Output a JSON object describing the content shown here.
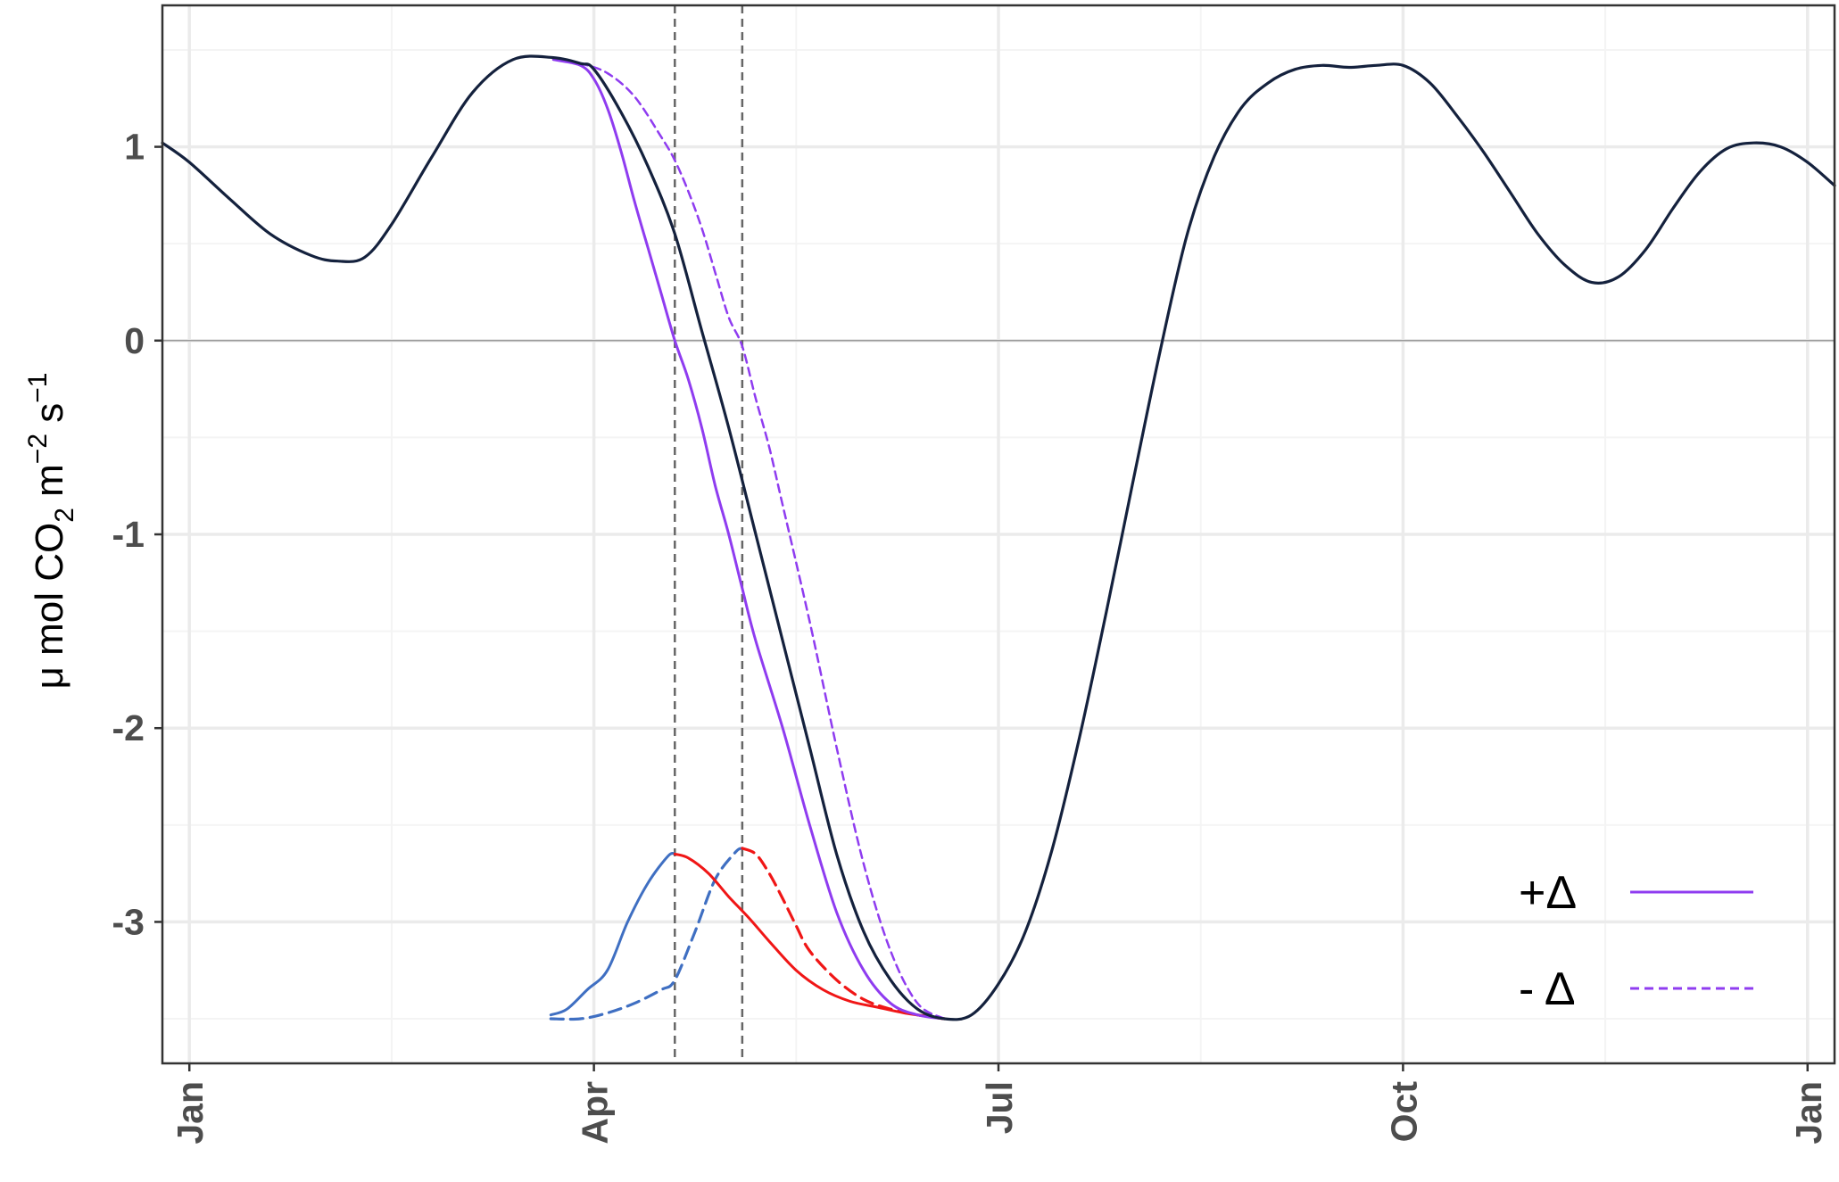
{
  "colors": {
    "main": "#14213d",
    "purple": "#8f3cf0",
    "blue": "#3f6fc2",
    "red": "#f01616",
    "vline": "#666666",
    "grid_major": "#ebebeb",
    "grid_minor": "#f4f4f4",
    "zero_line": "#9a9a9a",
    "panel_border": "#333333"
  },
  "ylabel": {
    "prefix": "μ mol CO",
    "sub": "2",
    "mid": " m",
    "sup1": "−2",
    "mid2": " s",
    "sup2": "−1"
  },
  "legend": {
    "position": "bottom-right",
    "items": [
      {
        "label": "+Δ",
        "style": "solid"
      },
      {
        "label": "- Δ",
        "style": "dashed"
      }
    ]
  },
  "chart_data": {
    "type": "line",
    "x_unit": "month",
    "xlim": [
      -0.2,
      12.2
    ],
    "ylim": [
      -3.73,
      1.73
    ],
    "grid": true,
    "x_ticks": [
      {
        "x": 0,
        "label": "Jan"
      },
      {
        "x": 3,
        "label": "Apr"
      },
      {
        "x": 6,
        "label": "Jul"
      },
      {
        "x": 9,
        "label": "Oct"
      },
      {
        "x": 12,
        "label": "Jan"
      }
    ],
    "y_ticks": [
      {
        "y": 1,
        "label": "1"
      },
      {
        "y": 0,
        "label": "0"
      },
      {
        "y": -1,
        "label": "-1"
      },
      {
        "y": -2,
        "label": "-2"
      },
      {
        "y": -3,
        "label": "-3"
      }
    ],
    "hline": 0,
    "vlines": [
      3.6,
      4.1
    ],
    "series": [
      {
        "key": "main",
        "style": "solid",
        "x": [
          -0.2,
          0.0,
          0.3,
          0.6,
          0.9,
          1.1,
          1.3,
          1.5,
          1.8,
          2.1,
          2.4,
          2.7,
          2.9,
          3.0,
          3.2,
          3.4,
          3.6,
          3.8,
          4.0,
          4.2,
          4.4,
          4.6,
          4.8,
          5.0,
          5.2,
          5.4,
          5.6,
          5.8,
          6.0,
          6.2,
          6.4,
          6.6,
          6.8,
          7.0,
          7.2,
          7.4,
          7.6,
          7.8,
          8.0,
          8.2,
          8.4,
          8.6,
          8.8,
          9.0,
          9.2,
          9.4,
          9.6,
          9.8,
          10.0,
          10.2,
          10.4,
          10.6,
          10.8,
          11.0,
          11.2,
          11.4,
          11.6,
          11.8,
          12.0,
          12.2
        ],
        "y": [
          1.02,
          0.92,
          0.73,
          0.55,
          0.44,
          0.41,
          0.43,
          0.6,
          0.95,
          1.28,
          1.45,
          1.46,
          1.43,
          1.4,
          1.18,
          0.9,
          0.55,
          0.05,
          -0.45,
          -1.0,
          -1.55,
          -2.1,
          -2.65,
          -3.05,
          -3.3,
          -3.45,
          -3.5,
          -3.48,
          -3.32,
          -3.05,
          -2.62,
          -2.05,
          -1.4,
          -0.72,
          -0.05,
          0.55,
          0.95,
          1.2,
          1.33,
          1.4,
          1.42,
          1.41,
          1.42,
          1.42,
          1.33,
          1.16,
          0.97,
          0.76,
          0.55,
          0.39,
          0.3,
          0.33,
          0.47,
          0.68,
          0.87,
          0.99,
          1.02,
          1.0,
          0.92,
          0.8
        ]
      },
      {
        "key": "purple",
        "style": "solid",
        "x": [
          2.7,
          2.9,
          3.0,
          3.1,
          3.2,
          3.3,
          3.4,
          3.5,
          3.6,
          3.7,
          3.8,
          3.9,
          4.0,
          4.1,
          4.2,
          4.4,
          4.6,
          4.8,
          5.0,
          5.2,
          5.4,
          5.6
        ],
        "y": [
          1.45,
          1.42,
          1.35,
          1.2,
          0.98,
          0.72,
          0.48,
          0.24,
          0.0,
          -0.2,
          -0.45,
          -0.75,
          -1.0,
          -1.28,
          -1.55,
          -2.0,
          -2.5,
          -2.95,
          -3.25,
          -3.42,
          -3.48,
          -3.5
        ]
      },
      {
        "key": "purple",
        "style": "dashed",
        "x": [
          2.7,
          2.9,
          3.1,
          3.3,
          3.5,
          3.6,
          3.7,
          3.8,
          3.9,
          4.0,
          4.1,
          4.2,
          4.3,
          4.4,
          4.6,
          4.8,
          5.0,
          5.2,
          5.4,
          5.6
        ],
        "y": [
          1.45,
          1.43,
          1.38,
          1.26,
          1.05,
          0.93,
          0.77,
          0.58,
          0.35,
          0.12,
          -0.03,
          -0.3,
          -0.55,
          -0.85,
          -1.45,
          -2.1,
          -2.7,
          -3.15,
          -3.42,
          -3.5
        ]
      },
      {
        "key": "blue",
        "style": "solid",
        "x": [
          2.68,
          2.8,
          2.95,
          3.1,
          3.25,
          3.4,
          3.55,
          3.6
        ],
        "y": [
          -3.48,
          -3.45,
          -3.35,
          -3.25,
          -3.0,
          -2.8,
          -2.66,
          -2.65
        ]
      },
      {
        "key": "blue",
        "style": "dashed",
        "x": [
          2.68,
          2.9,
          3.1,
          3.3,
          3.5,
          3.6,
          3.75,
          3.9,
          4.05,
          4.1
        ],
        "y": [
          -3.5,
          -3.5,
          -3.47,
          -3.42,
          -3.35,
          -3.3,
          -3.05,
          -2.78,
          -2.64,
          -2.62
        ]
      },
      {
        "key": "red",
        "style": "solid",
        "x": [
          3.6,
          3.7,
          3.85,
          4.0,
          4.15,
          4.3,
          4.5,
          4.7,
          4.9,
          5.1,
          5.3,
          5.5,
          5.6
        ],
        "y": [
          -2.65,
          -2.67,
          -2.75,
          -2.87,
          -2.98,
          -3.1,
          -3.25,
          -3.35,
          -3.41,
          -3.44,
          -3.47,
          -3.49,
          -3.5
        ]
      },
      {
        "key": "red",
        "style": "dashed",
        "x": [
          4.1,
          4.2,
          4.3,
          4.4,
          4.5,
          4.6,
          4.8,
          5.0,
          5.2,
          5.4,
          5.6
        ],
        "y": [
          -2.62,
          -2.65,
          -2.75,
          -2.88,
          -3.02,
          -3.15,
          -3.3,
          -3.4,
          -3.45,
          -3.48,
          -3.5
        ]
      }
    ]
  }
}
